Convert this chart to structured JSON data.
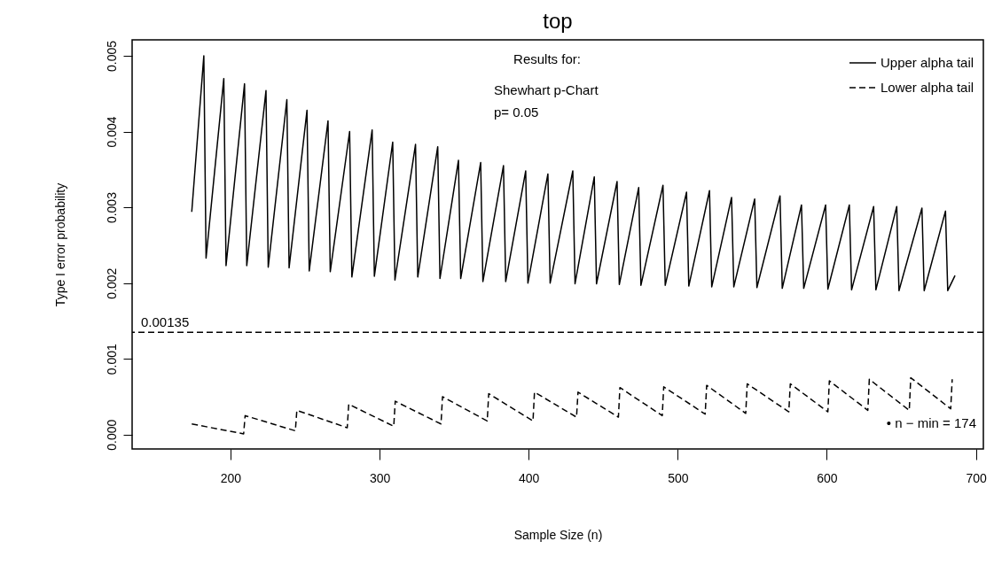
{
  "chart_data": {
    "type": "line",
    "title": "top",
    "xlabel": "Sample Size (n)",
    "ylabel": "Type I error probability",
    "xlim": [
      134,
      705
    ],
    "xticks": [
      200,
      300,
      400,
      500,
      600,
      700
    ],
    "ylim": [
      -0.00019,
      0.00521
    ],
    "yticks": [
      {
        "value": 0,
        "label": "0.000"
      },
      {
        "value": 0.001,
        "label": "0.001"
      },
      {
        "value": 0.002,
        "label": "0.002"
      },
      {
        "value": 0.003,
        "label": "0.003"
      },
      {
        "value": 0.004,
        "label": "0.004"
      },
      {
        "value": 0.005,
        "label": "0.005"
      }
    ],
    "grid": false,
    "legend": "top right",
    "marker": "none",
    "series": [
      {
        "name": "Upper alpha tail",
        "color": "#000000",
        "line_style": "solid",
        "x": [
          174,
          182.1,
          183.6,
          195.5,
          197,
          209.4,
          210.9,
          223.8,
          225.3,
          237.8,
          239.3,
          251.3,
          252.8,
          265.4,
          266.9,
          279.9,
          281.4,
          295,
          296.5,
          308.8,
          310.3,
          324.1,
          325.6,
          339,
          340.5,
          352.9,
          354.4,
          367.8,
          369.3,
          383.1,
          384.6,
          398,
          399.5,
          412.9,
          414.4,
          429.6,
          431.1,
          444,
          445.5,
          459.3,
          460.8,
          473.8,
          475.3,
          490.1,
          491.6,
          505.9,
          507.4,
          521.3,
          522.8,
          536.1,
          537.6,
          551.6,
          553.1,
          568.6,
          570.1,
          583,
          584.5,
          599.2,
          600.7,
          615.1,
          616.6,
          631.4,
          632.9,
          646.9,
          648.4,
          663.8,
          665.3,
          679.6,
          681.1,
          686
        ],
        "values": [
          0.00294,
          0.005,
          0.00233,
          0.0047,
          0.00223,
          0.00463,
          0.00223,
          0.00454,
          0.00221,
          0.00442,
          0.0022,
          0.00428,
          0.00216,
          0.00414,
          0.00215,
          0.004,
          0.00208,
          0.00402,
          0.00209,
          0.00386,
          0.00204,
          0.00383,
          0.00208,
          0.0038,
          0.00206,
          0.00362,
          0.00206,
          0.00359,
          0.00202,
          0.00355,
          0.00202,
          0.00348,
          0.002,
          0.00344,
          0.002,
          0.00348,
          0.00199,
          0.0034,
          0.00199,
          0.00334,
          0.00198,
          0.00326,
          0.00197,
          0.00329,
          0.00197,
          0.0032,
          0.00196,
          0.00322,
          0.00195,
          0.00313,
          0.00195,
          0.00311,
          0.00194,
          0.00315,
          0.00193,
          0.00303,
          0.00193,
          0.00303,
          0.00192,
          0.00303,
          0.00191,
          0.00301,
          0.00191,
          0.00301,
          0.0019,
          0.00299,
          0.0019,
          0.00295,
          0.0019,
          0.0021
        ]
      },
      {
        "name": "Lower alpha tail",
        "color": "#000000",
        "line_style": "dashed",
        "x": [
          174,
          208.8,
          209.8,
          243.5,
          244.5,
          278.3,
          279.3,
          309.5,
          310.5,
          341.2,
          342.2,
          372.2,
          373.2,
          402.9,
          403.9,
          432.1,
          433.1,
          460.2,
          461.2,
          489.6,
          490.6,
          518.4,
          519.4,
          545.6,
          546.6,
          574.5,
          575.5,
          600.7,
          601.7,
          627.5,
          628.5,
          655.3,
          656.3,
          683.1,
          684.1
        ],
        "values": [
          0.00014,
          1e-05,
          0.00025,
          5e-05,
          0.00032,
          9e-05,
          0.0004,
          0.00011,
          0.00044,
          0.00014,
          0.0005,
          0.00018,
          0.00054,
          0.00018,
          0.00056,
          0.00023,
          0.00056,
          0.00023,
          0.00062,
          0.00025,
          0.00063,
          0.00027,
          0.00065,
          0.00028,
          0.00067,
          0.0003,
          0.00067,
          0.0003,
          0.00071,
          0.00032,
          0.00073,
          0.00032,
          0.00075,
          0.00034,
          0.00073
        ]
      }
    ],
    "ref_lines": [
      {
        "axis": "y",
        "value": 0.00135,
        "label": "0.00135",
        "color": "#000000",
        "line_style": "dashed"
      }
    ],
    "annotations": [
      "Results for:",
      "Shewhart p-Chart",
      "p= 0.05",
      "• n − min = 174"
    ]
  }
}
